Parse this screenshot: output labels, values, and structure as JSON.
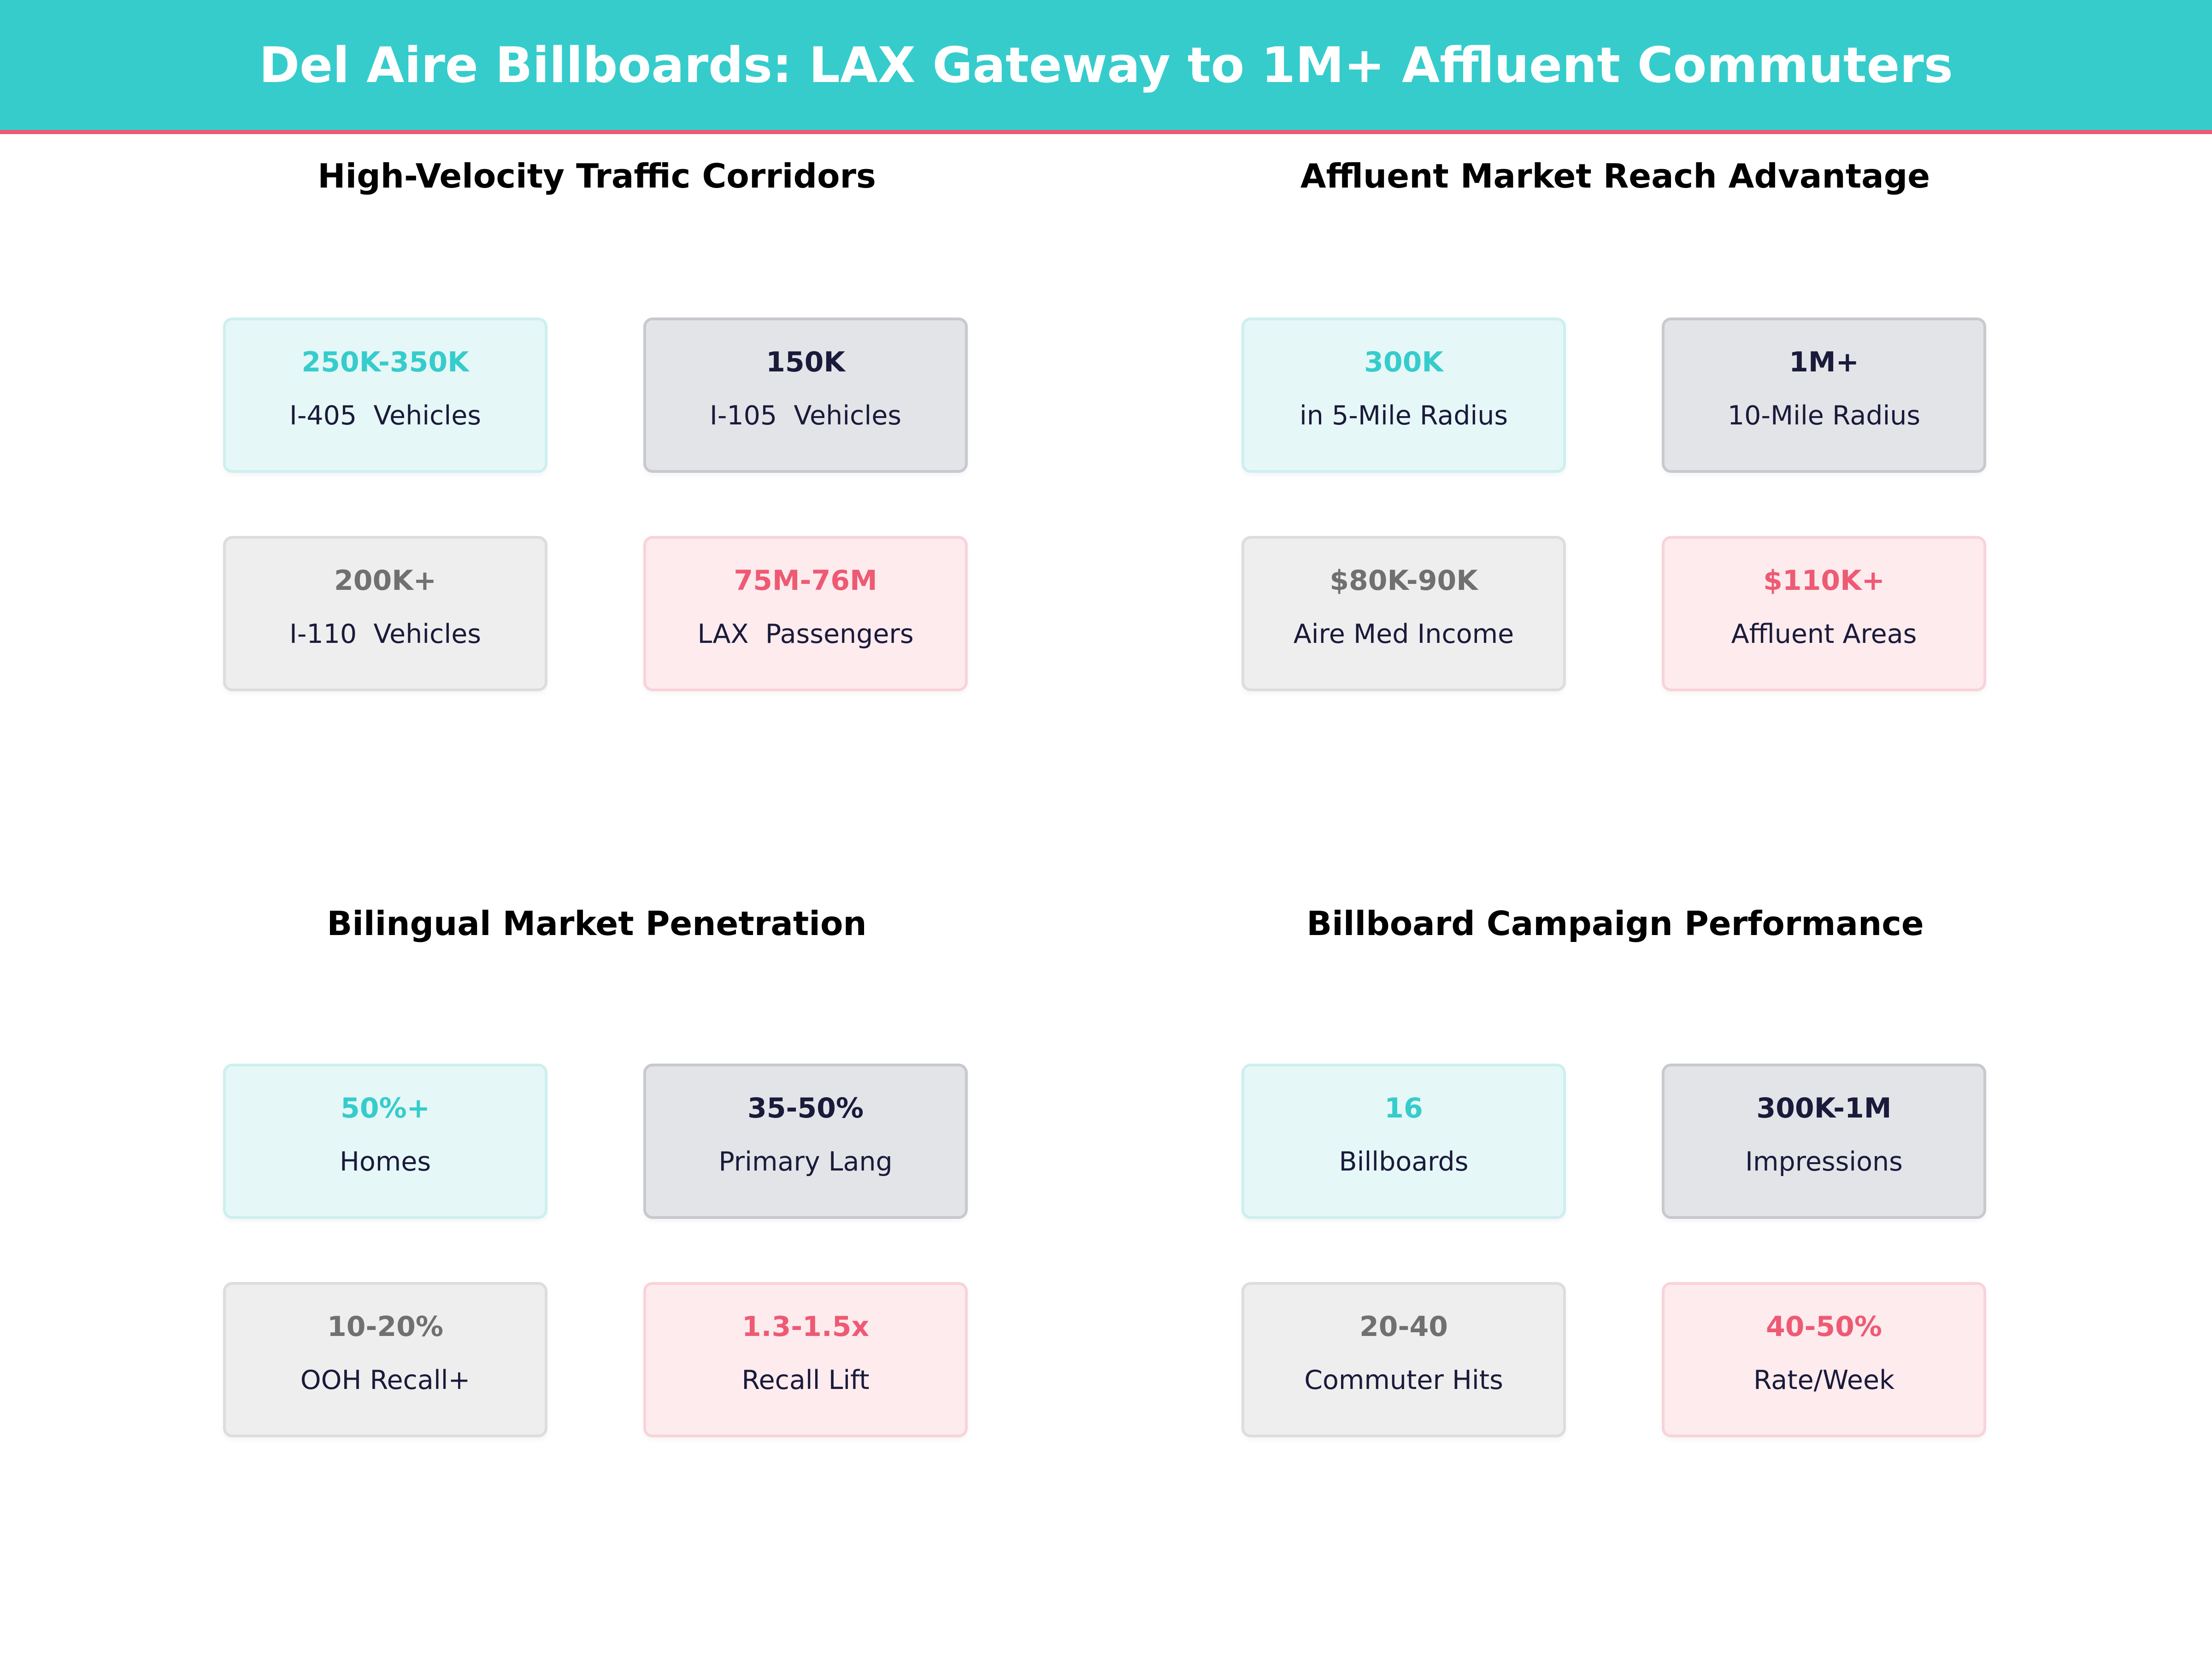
{
  "header": {
    "title": "Del Aire Billboards: LAX Gateway to 1M+ Affluent Commuters"
  },
  "colors": {
    "teal": "#36CCCC",
    "navy": "#1A1A3A",
    "gray": "#707070",
    "coral": "#EE5A73"
  },
  "panels": [
    {
      "title": "High-Velocity Traffic Corridors",
      "cards": [
        {
          "value": "250K-350K",
          "label": "I-405  Vehicles"
        },
        {
          "value": "150K",
          "label": "I-105  Vehicles"
        },
        {
          "value": "200K+",
          "label": "I-110  Vehicles"
        },
        {
          "value": "75M-76M",
          "label": "LAX  Passengers"
        }
      ]
    },
    {
      "title": "Affluent Market Reach Advantage",
      "cards": [
        {
          "value": "300K",
          "label": "in 5-Mile Radius"
        },
        {
          "value": "1M+",
          "label": "10-Mile Radius"
        },
        {
          "value": "$80K-90K",
          "label": "Aire Med Income"
        },
        {
          "value": "$110K+",
          "label": "Affluent Areas"
        }
      ]
    },
    {
      "title": "Bilingual Market Penetration",
      "cards": [
        {
          "value": "50%+",
          "label": "Homes"
        },
        {
          "value": "35-50%",
          "label": "Primary Lang"
        },
        {
          "value": "10-20%",
          "label": "OOH Recall+"
        },
        {
          "value": "1.3-1.5x",
          "label": "Recall Lift"
        }
      ]
    },
    {
      "title": "Billboard Campaign Performance",
      "cards": [
        {
          "value": "16",
          "label": "Billboards"
        },
        {
          "value": "300K-1M",
          "label": "Impressions"
        },
        {
          "value": "20-40",
          "label": "Commuter Hits"
        },
        {
          "value": "40-50%",
          "label": "Rate/Week"
        }
      ]
    }
  ]
}
